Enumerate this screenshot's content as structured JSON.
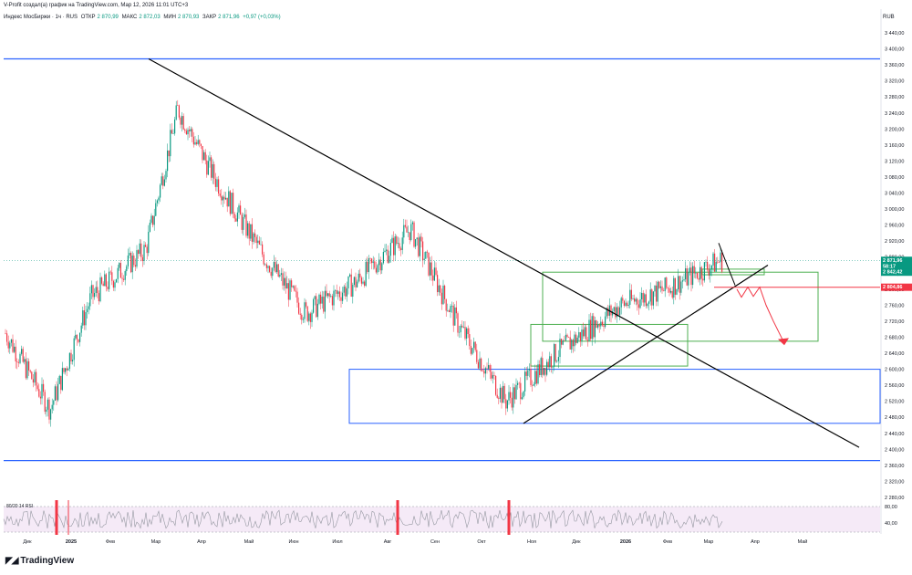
{
  "header": {
    "title": "V-Profit создал(а) график на TradingView.com, Мар 12, 2026 11:01 UTC+3"
  },
  "legend": {
    "symbol": "Индекс МосБиржи · 1ч · RUS",
    "open_label": "ОТКР",
    "open": "2 870,99",
    "high_label": "МАКС",
    "high": "2 872,03",
    "low_label": "МИН",
    "low": "2 870,93",
    "close_label": "ЗАКР",
    "close": "2 871,96",
    "change": "+0,97 (+0,03%)"
  },
  "axis": {
    "currency": "RUB",
    "y_ticks": [
      "3 440,00",
      "3 400,00",
      "3 360,00",
      "3 320,00",
      "3 280,00",
      "3 240,00",
      "3 200,00",
      "3 160,00",
      "3 120,00",
      "3 080,00",
      "3 040,00",
      "3 000,00",
      "2 960,00",
      "2 920,00",
      "2 880,00",
      "2 840,00",
      "2 800,00",
      "2 760,00",
      "2 720,00",
      "2 680,00",
      "2 640,00",
      "2 600,00",
      "2 560,00",
      "2 520,00",
      "2 480,00",
      "2 440,00",
      "2 400,00",
      "2 360,00",
      "2 320,00",
      "2 280,00"
    ],
    "x_ticks": [
      "Дек",
      "2025",
      "Фев",
      "Мар",
      "Апр",
      "Май",
      "Июн",
      "Июл",
      "Авг",
      "Сен",
      "Окт",
      "Ноя",
      "Дек",
      "2026",
      "Фев",
      "Мар",
      "Апр",
      "Май"
    ],
    "rsi_ticks": [
      "80,00",
      "40,00"
    ]
  },
  "price_labels": {
    "last": "2 871,96",
    "countdown": "58:17",
    "level_green": "2 842,42",
    "level_red": "2 804,86"
  },
  "rsi": {
    "label": "80/20 14 RSI"
  },
  "footer": {
    "brand": "TradingView"
  },
  "colors": {
    "up": "#089981",
    "down": "#f23645",
    "blue_line": "#2962ff",
    "green_box": "#4caf50",
    "red_line": "#f23645",
    "rsi_bg": "#f3e5f5"
  },
  "chart_data": {
    "type": "line",
    "title": "",
    "xlabel": "",
    "ylabel": "",
    "ylim": [
      2260,
      3460
    ],
    "x": [
      "Дек",
      "2025",
      "Фев",
      "Мар",
      "Апр",
      "Май",
      "Июн",
      "Июл",
      "Авг",
      "Сен",
      "Окт",
      "Ноя",
      "Дек",
      "2026",
      "Фев",
      "Мар"
    ],
    "series": [
      {
        "values": [
          2690,
          2500,
          2780,
          2900,
          3250,
          3080,
          2880,
          2740,
          2820,
          2950,
          2720,
          2520,
          2640,
          2760,
          2800,
          2871.96
        ]
      }
    ],
    "levels": [
      {
        "value": 3375,
        "color": "#2962ff"
      },
      {
        "value": 2372,
        "color": "#2962ff"
      },
      {
        "value": 2842.42,
        "color": "#089981"
      },
      {
        "value": 2804.86,
        "color": "#f23645"
      }
    ],
    "rsi_range": [
      0,
      100
    ],
    "rsi_levels": [
      80,
      20
    ]
  }
}
